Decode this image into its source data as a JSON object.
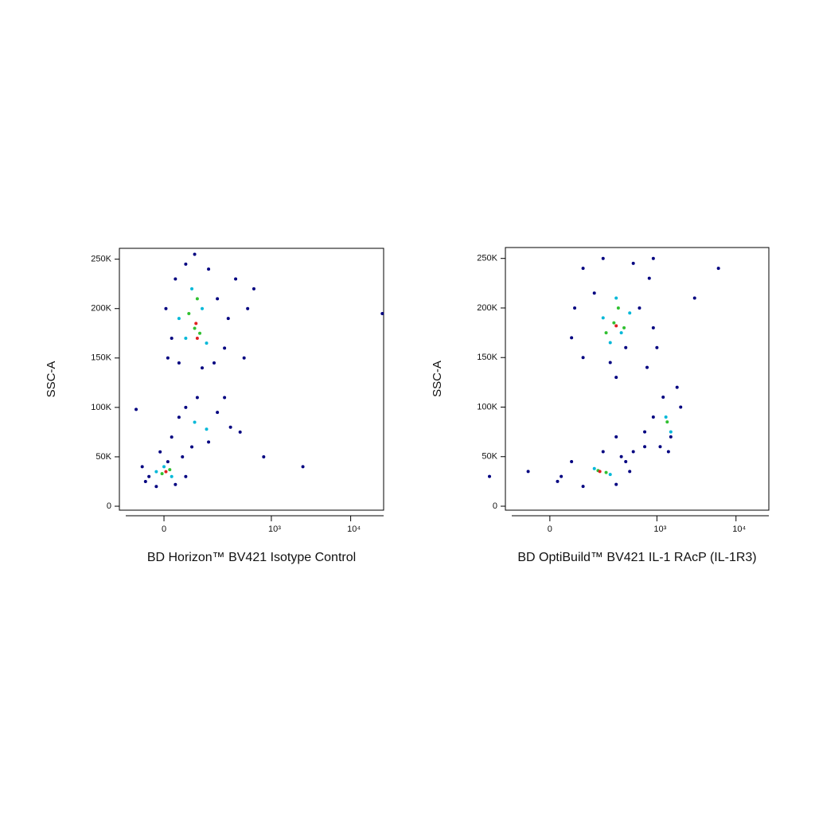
{
  "chart_data": [
    {
      "type": "scatter",
      "title": "BD Horizon™ BV421 Isotype Control",
      "ylabel": "SSC-A",
      "xscale": "biexponential",
      "xlim": [
        -150,
        26000
      ],
      "ylim": [
        -4000,
        261000
      ],
      "xticks": [
        0,
        {
          "value": 1000,
          "label": "10³"
        },
        {
          "value": 10000,
          "label": "10⁴"
        }
      ],
      "yticks": [
        0,
        {
          "value": 50000,
          "label": "50K"
        },
        {
          "value": 100000,
          "label": "100K"
        },
        {
          "value": 150000,
          "label": "150K"
        },
        {
          "value": 200000,
          "label": "200K"
        },
        {
          "value": 250000,
          "label": "250K"
        }
      ],
      "series": [
        {
          "color": "#000080",
          "x": [
            10,
            30,
            60,
            150,
            200,
            250,
            20,
            5,
            280,
            120,
            40,
            180,
            90,
            350,
            500,
            450,
            20,
            60,
            100,
            200,
            300,
            150,
            80,
            400,
            250,
            40,
            -40,
            -60,
            -20,
            30,
            60,
            50,
            -10,
            10,
            -50,
            2500,
            800,
            600,
            -80,
            25000
          ],
          "values": [
            150000,
            230000,
            245000,
            240000,
            210000,
            160000,
            170000,
            200000,
            190000,
            140000,
            145000,
            145000,
            255000,
            230000,
            200000,
            150000,
            70000,
            100000,
            110000,
            95000,
            80000,
            65000,
            60000,
            75000,
            110000,
            90000,
            30000,
            40000,
            20000,
            22000,
            30000,
            50000,
            55000,
            45000,
            25000,
            40000,
            50000,
            220000,
            98000,
            195000
          ]
        },
        {
          "color": "#00b8d8",
          "x": [
            60,
            120,
            80,
            140,
            40,
            90,
            140,
            -20,
            20,
            0
          ],
          "values": [
            170000,
            200000,
            220000,
            165000,
            190000,
            85000,
            78000,
            35000,
            30000,
            40000
          ]
        },
        {
          "color": "#30c030",
          "x": [
            90,
            110,
            70,
            100,
            -5,
            15
          ],
          "values": [
            180000,
            175000,
            195000,
            210000,
            33000,
            37000
          ]
        },
        {
          "color": "#e02020",
          "x": [
            95,
            100,
            5
          ],
          "values": [
            185000,
            170000,
            35000
          ]
        }
      ]
    },
    {
      "type": "scatter",
      "title": "BD OptiBuild™ BV421 IL-1 RAcP (IL-1R3)",
      "ylabel": "SSC-A",
      "xscale": "biexponential",
      "xlim": [
        -150,
        26000
      ],
      "ylim": [
        -4000,
        261000
      ],
      "xticks": [
        0,
        {
          "value": 1000,
          "label": "10³"
        },
        {
          "value": 10000,
          "label": "10⁴"
        }
      ],
      "yticks": [
        0,
        {
          "value": 50000,
          "label": "50K"
        },
        {
          "value": 100000,
          "label": "100K"
        },
        {
          "value": 150000,
          "label": "150K"
        },
        {
          "value": 200000,
          "label": "200K"
        },
        {
          "value": 250000,
          "label": "250K"
        }
      ],
      "series": [
        {
          "color": "#000080",
          "x": [
            70,
            100,
            200,
            500,
            800,
            900,
            750,
            300,
            100,
            60,
            400,
            600,
            1000,
            150,
            250,
            900,
            1100,
            1500,
            2000,
            1200,
            900,
            1800,
            1400,
            700,
            500,
            300,
            700,
            400,
            30,
            60,
            100,
            300,
            450,
            350,
            -60,
            20,
            200,
            -250,
            3000,
            6000
          ],
          "values": [
            200000,
            240000,
            250000,
            245000,
            230000,
            180000,
            140000,
            130000,
            150000,
            170000,
            160000,
            200000,
            160000,
            215000,
            145000,
            250000,
            60000,
            70000,
            100000,
            110000,
            90000,
            120000,
            55000,
            75000,
            55000,
            70000,
            60000,
            45000,
            30000,
            45000,
            20000,
            22000,
            35000,
            50000,
            35000,
            25000,
            55000,
            30000,
            210000,
            240000
          ]
        },
        {
          "color": "#00b8d8",
          "x": [
            200,
            350,
            450,
            250,
            300,
            1300,
            1500,
            150,
            250
          ],
          "values": [
            190000,
            175000,
            195000,
            165000,
            210000,
            90000,
            75000,
            38000,
            32000
          ]
        },
        {
          "color": "#30c030",
          "x": [
            280,
            380,
            320,
            220,
            1350,
            170,
            220
          ],
          "values": [
            185000,
            180000,
            200000,
            175000,
            85000,
            36000,
            34000
          ]
        },
        {
          "color": "#e02020",
          "x": [
            300,
            180
          ],
          "values": [
            182000,
            35000
          ]
        }
      ]
    }
  ]
}
